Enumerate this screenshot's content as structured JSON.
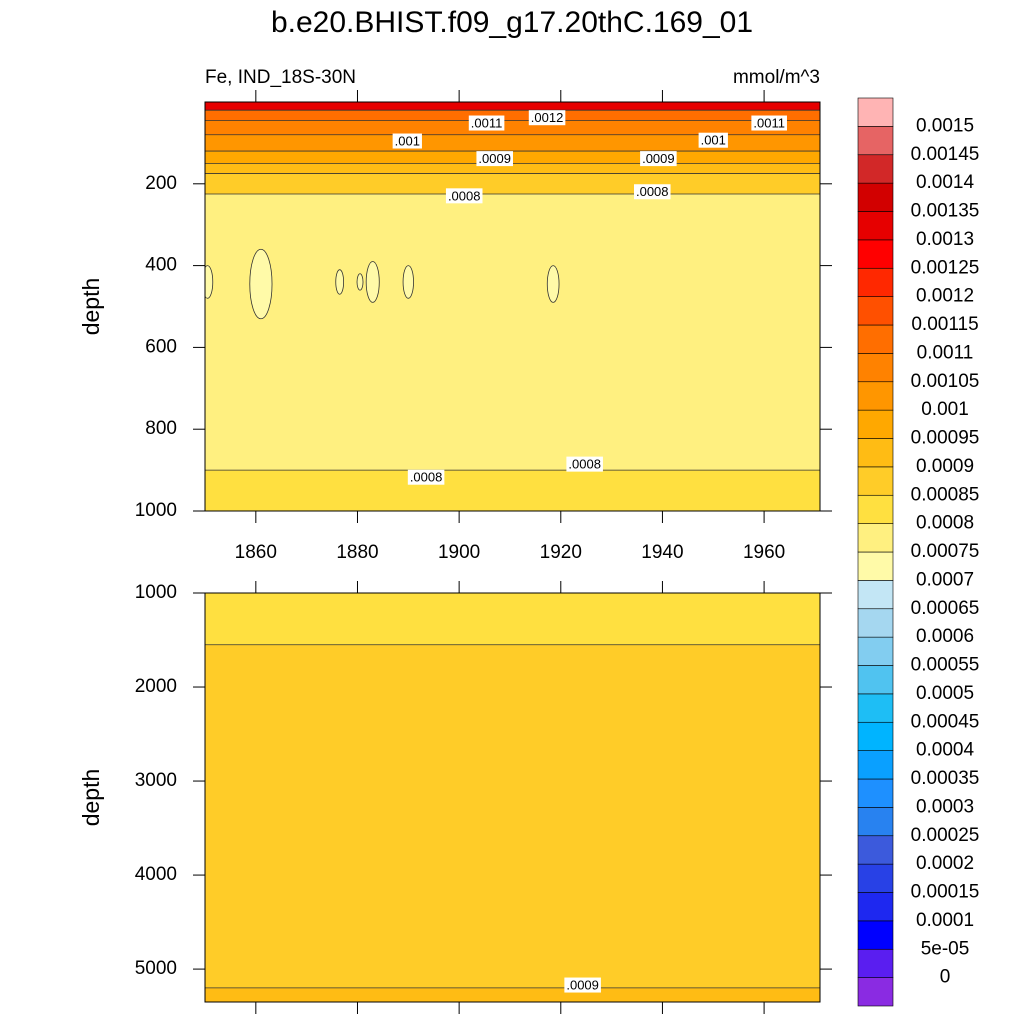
{
  "chart_data": [
    {
      "type": "contour",
      "title": "b.e20.BHIST.f09_g17.20thC.169_01",
      "left_string": "Fe, IND_18S-30N",
      "right_string": "mmol/m^3",
      "ylabel": "depth",
      "xlim": [
        1850,
        1971
      ],
      "xticks": [
        1860,
        1880,
        1900,
        1920,
        1940,
        1960
      ],
      "xtick_labels": true,
      "ylim": [
        0,
        1000
      ],
      "yticks": [
        200,
        400,
        600,
        800,
        1000
      ],
      "y_reversed": true,
      "colorbar": {
        "labels": [
          0,
          {
            "value": 5e-05,
            "label": "5e-05"
          },
          0.0001,
          0.00015,
          0.0002,
          0.00025,
          0.0003,
          0.00035,
          0.0004,
          0.00045,
          0.0005,
          0.00055,
          0.0006,
          0.00065,
          0.0007,
          0.00075,
          0.0008,
          0.00085,
          0.0009,
          0.00095,
          0.001,
          0.00105,
          0.0011,
          0.00115,
          0.0012,
          0.00125,
          0.0013,
          0.00135,
          0.0014,
          0.00145,
          0.0015
        ],
        "colors": [
          "#8a2be2",
          "#5a1ef0",
          "#0000ff",
          "#1e28f0",
          "#2841e6",
          "#3c5adc",
          "#2882f0",
          "#1e90ff",
          "#0aa0ff",
          "#00b4ff",
          "#1ebef5",
          "#50c3f0",
          "#82cdf0",
          "#a5d7f0",
          "#c3e6f5",
          "#fffaa8",
          "#fff080",
          "#ffe040",
          "#ffcc28",
          "#ffbc14",
          "#ffa800",
          "#ff9600",
          "#ff8200",
          "#ff6e00",
          "#ff5000",
          "#ff2800",
          "#ff0000",
          "#e60000",
          "#d20000",
          "#d22828",
          "#e66464",
          "#ffb4b4"
        ]
      },
      "regions": [
        {
          "level": 0.0013,
          "depth_range": [
            0,
            20
          ]
        },
        {
          "level": 0.0011,
          "depth_range": [
            20,
            45
          ]
        },
        {
          "level": 0.00105,
          "depth_range": [
            45,
            80
          ]
        },
        {
          "level": 0.001,
          "depth_range": [
            80,
            120
          ]
        },
        {
          "level": 0.00095,
          "depth_range": [
            120,
            150
          ]
        },
        {
          "level": 0.0009,
          "depth_range": [
            150,
            175
          ]
        },
        {
          "level": 0.00085,
          "depth_range": [
            175,
            225
          ]
        },
        {
          "level": 0.00075,
          "depth_range": [
            225,
            900
          ]
        },
        {
          "level": 0.0008,
          "depth_range": [
            900,
            1000
          ]
        }
      ],
      "lows": [
        {
          "level": 0.0007,
          "x": 1850.5,
          "depth_range": [
            400,
            480
          ]
        },
        {
          "level": 0.0007,
          "x": 1861,
          "depth_range": [
            360,
            530
          ]
        },
        {
          "level": 0.0007,
          "x": 1876.5,
          "depth_range": [
            410,
            470
          ]
        },
        {
          "level": 0.0007,
          "x": 1880.5,
          "depth_range": [
            420,
            460
          ]
        },
        {
          "level": 0.0007,
          "x": 1883,
          "depth_range": [
            390,
            490
          ]
        },
        {
          "level": 0.0007,
          "x": 1890,
          "depth_range": [
            400,
            480
          ]
        },
        {
          "level": 0.0007,
          "x": 1918.5,
          "depth_range": [
            400,
            490
          ]
        }
      ],
      "contour_labels": [
        {
          "value": 0.0011,
          "label": ".0011",
          "x": 1905.4,
          "depth": 54
        },
        {
          "value": 0.0012,
          "label": ".0012",
          "x": 1917.3,
          "depth": 41
        },
        {
          "value": 0.001,
          "label": ".001",
          "x": 1889.8,
          "depth": 98
        },
        {
          "value": 0.001,
          "label": ".001",
          "x": 1950,
          "depth": 96
        },
        {
          "value": 0.0011,
          "label": ".0011",
          "x": 1961,
          "depth": 54
        },
        {
          "value": 0.0009,
          "label": ".0009",
          "x": 1907,
          "depth": 141
        },
        {
          "value": 0.0009,
          "label": ".0009",
          "x": 1939.2,
          "depth": 141
        },
        {
          "value": 0.0008,
          "label": ".0008",
          "x": 1901,
          "depth": 232
        },
        {
          "value": 0.0008,
          "label": ".0008",
          "x": 1938,
          "depth": 222
        },
        {
          "value": 0.0008,
          "label": ".0008",
          "x": 1893.5,
          "depth": 920
        },
        {
          "value": 0.0008,
          "label": ".0008",
          "x": 1924.7,
          "depth": 888
        }
      ]
    },
    {
      "type": "contour",
      "ylabel": "depth",
      "xlim": [
        1850,
        1971
      ],
      "xticks": [
        1860,
        1880,
        1900,
        1920,
        1940,
        1960
      ],
      "xtick_labels": false,
      "ylim": [
        1000,
        5350
      ],
      "yticks": [
        1000,
        2000,
        3000,
        4000,
        5000
      ],
      "y_reversed": true,
      "regions": [
        {
          "level": 0.0008,
          "depth_range": [
            1000,
            1550
          ]
        },
        {
          "level": 0.00085,
          "depth_range": [
            1550,
            5200
          ]
        },
        {
          "level": 0.0009,
          "depth_range": [
            5200,
            5350
          ]
        }
      ],
      "lows": [],
      "contour_labels": [
        {
          "value": 0.0009,
          "label": ".0009",
          "x": 1924.3,
          "depth": 5181
        }
      ]
    }
  ]
}
